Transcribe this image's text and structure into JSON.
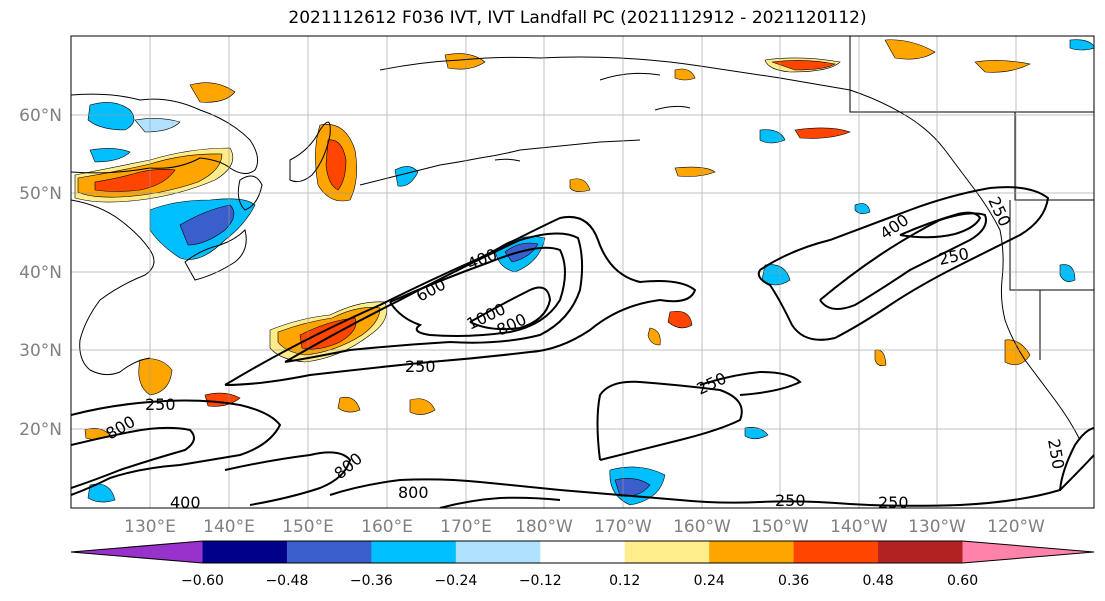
{
  "title": "2021112612 F036 IVT, IVT Landfall PC (2021112912 - 2021120112)",
  "map": {
    "lon_ticks": [
      "130°E",
      "140°E",
      "150°E",
      "160°E",
      "170°E",
      "180°W",
      "170°W",
      "160°W",
      "150°W",
      "140°W",
      "130°W",
      "120°W"
    ],
    "lat_ticks": [
      "60°N",
      "50°N",
      "40°N",
      "30°N",
      "20°N"
    ],
    "gridlines": true,
    "tick_label_color": "#808080"
  },
  "contours": {
    "color": "#000000",
    "labels": [
      "250",
      "400",
      "600",
      "800",
      "1000",
      "250",
      "800",
      "800",
      "800",
      "400",
      "250",
      "250",
      "250",
      "400",
      "250",
      "250",
      "250"
    ]
  },
  "colorbar": {
    "ticks": [
      "−0.60",
      "−0.48",
      "−0.36",
      "−0.24",
      "−0.12",
      "0.12",
      "0.24",
      "0.36",
      "0.48",
      "0.60"
    ],
    "colors": [
      "#9932cc",
      "#00008b",
      "#3a5fcd",
      "#00bfff",
      "#b0e2ff",
      "#ffffff",
      "#ffec8b",
      "#ffa500",
      "#ff4500",
      "#b22222",
      "#ff82ab"
    ]
  }
}
